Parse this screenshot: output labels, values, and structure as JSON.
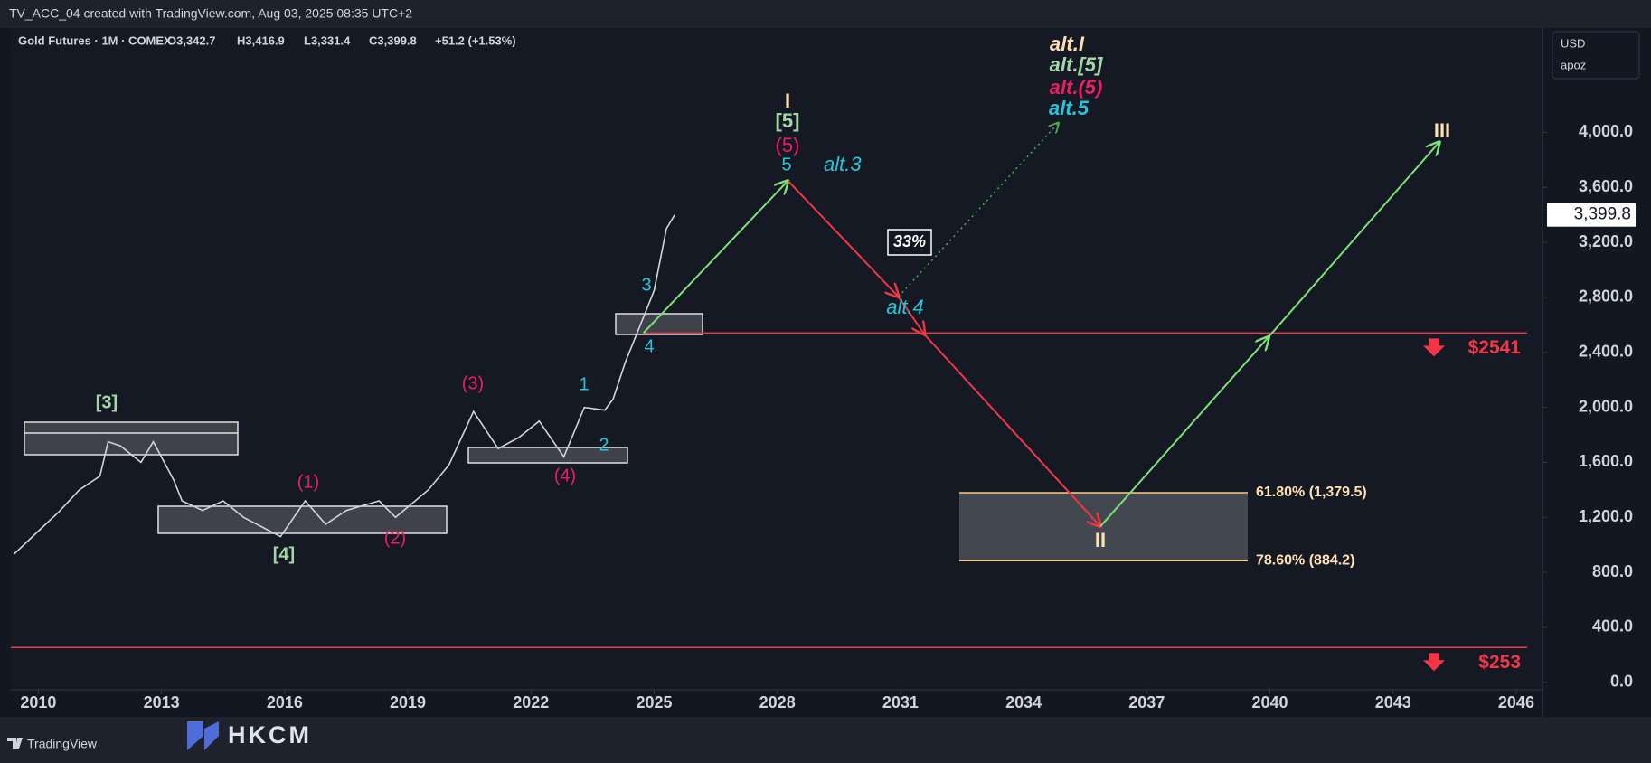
{
  "header": {
    "title": "TV_ACC_04 created with TradingView.com, Aug 03, 2025 08:35 UTC+2"
  },
  "legend": {
    "symbol": "Gold Futures · 1M · COMEX",
    "open": "O3,342.7",
    "high": "H3,416.9",
    "low": "L3,331.4",
    "close": "C3,399.8",
    "change": "+51.2 (+1.53%)"
  },
  "scale_box": {
    "currency": "USD",
    "unit": "apoz"
  },
  "footer": {
    "platform": "TradingView",
    "brand": "HKCM"
  },
  "chart_data": {
    "type": "line",
    "x": [
      2009.4,
      2010.0,
      2010.5,
      2011.0,
      2011.5,
      2011.7,
      2012.0,
      2012.5,
      2012.8,
      2013.3,
      2013.5,
      2014.0,
      2014.5,
      2015.0,
      2015.9,
      2016.5,
      2017.0,
      2017.5,
      2018.3,
      2018.7,
      2019.5,
      2020.0,
      2020.6,
      2021.2,
      2021.7,
      2022.2,
      2022.8,
      2023.3,
      2023.8,
      2024.0,
      2024.3,
      2024.8,
      2025.0,
      2025.3,
      2025.5
    ],
    "series": [
      {
        "color": "#d1d4dc",
        "values": [
          930,
          1100,
          1240,
          1400,
          1500,
          1750,
          1720,
          1600,
          1750,
          1470,
          1320,
          1250,
          1320,
          1200,
          1060,
          1320,
          1150,
          1250,
          1320,
          1200,
          1400,
          1580,
          1970,
          1700,
          1780,
          1900,
          1640,
          2000,
          1980,
          2060,
          2330,
          2700,
          2850,
          3300,
          3399.8
        ]
      }
    ],
    "xlim": [
      2009.33,
      2046.64
    ],
    "ylim": [
      -54,
      4759
    ],
    "xticks": [
      2010,
      2013,
      2016,
      2019,
      2022,
      2025,
      2028,
      2031,
      2034,
      2037,
      2040,
      2043,
      2046
    ],
    "yticks": [
      {
        "value": 0,
        "label": "0.0"
      },
      {
        "value": 400,
        "label": "400.0"
      },
      {
        "value": 800,
        "label": "800.0"
      },
      {
        "value": 1200,
        "label": "1,200.0"
      },
      {
        "value": 1600,
        "label": "1,600.0"
      },
      {
        "value": 2000,
        "label": "2,000.0"
      },
      {
        "value": 2400,
        "label": "2,400.0"
      },
      {
        "value": 2800,
        "label": "2,800.0"
      },
      {
        "value": 3200,
        "label": "3,200.0"
      },
      {
        "value": 3600,
        "label": "3,600.0"
      },
      {
        "value": 4000,
        "label": "4,000.0"
      }
    ],
    "grid": false,
    "last_price": {
      "value": 3399.8,
      "label": "3,399.8"
    },
    "levels": [
      {
        "value": 2541,
        "label": "$2541",
        "color": "#f23645"
      },
      {
        "value": 253,
        "label": "$253",
        "color": "#f23645"
      }
    ],
    "fib_levels": [
      {
        "value": 1379.5,
        "label": "61.80% (1,379.5)"
      },
      {
        "value": 884.2,
        "label": "78.60% (884.2)"
      }
    ],
    "projections": [
      {
        "color": "#7ee07a",
        "dashed": false,
        "x": [
          2024.74,
          2028.26
        ],
        "values": [
          2541,
          3648
        ]
      },
      {
        "color": "#f23645",
        "dashed": false,
        "x": [
          2028.26,
          2030.95
        ],
        "values": [
          3648,
          2805
        ]
      },
      {
        "color": "#4caf50",
        "dashed": true,
        "x": [
          2030.95,
          2034.85
        ],
        "values": [
          2805,
          4069
        ]
      },
      {
        "color": "#f23645",
        "dashed": false,
        "x": [
          2030.95,
          2031.59
        ],
        "values": [
          2805,
          2529
        ]
      },
      {
        "color": "#f23645",
        "dashed": false,
        "x": [
          2031.59,
          2035.87
        ],
        "values": [
          2529,
          1134
        ]
      },
      {
        "color": "#7ee07a",
        "dashed": false,
        "x": [
          2035.87,
          2039.97
        ],
        "values": [
          1134,
          2513
        ]
      },
      {
        "color": "#7ee07a",
        "dashed": false,
        "x": [
          2039.97,
          2044.13
        ],
        "values": [
          2513,
          3931
        ]
      }
    ],
    "wave_labels": [
      {
        "text": "[3]",
        "color": "#a5d6a7"
      },
      {
        "text": "[4]",
        "color": "#a5d6a7"
      },
      {
        "text": "(1)",
        "color": "#e91e63"
      },
      {
        "text": "(2)",
        "color": "#e91e63"
      },
      {
        "text": "(3)",
        "color": "#e91e63"
      },
      {
        "text": "(4)",
        "color": "#e91e63"
      },
      {
        "text": "1",
        "color": "#26c6da"
      },
      {
        "text": "2",
        "color": "#26c6da"
      },
      {
        "text": "3",
        "color": "#26c6da"
      },
      {
        "text": "4",
        "color": "#26c6da"
      },
      {
        "text": "I",
        "color": "#ffe0b2"
      },
      {
        "text": "[5]",
        "color": "#a5d6a7"
      },
      {
        "text": "(5)",
        "color": "#e91e63"
      },
      {
        "text": "5",
        "color": "#26c6da"
      },
      {
        "text": "alt.3",
        "color": "#26c6da"
      },
      {
        "text": "alt.I",
        "color": "#ffe0b2"
      },
      {
        "text": "alt.[5]",
        "color": "#a5d6a7"
      },
      {
        "text": "alt.(5)",
        "color": "#e91e63"
      },
      {
        "text": "alt.5",
        "color": "#26c6da"
      },
      {
        "text": "33%",
        "color": "#ffffff"
      },
      {
        "text": "alt.4",
        "color": "#26c6da"
      },
      {
        "text": "II",
        "color": "#ffe0b2"
      },
      {
        "text": "III",
        "color": "#ffe0b2"
      }
    ]
  }
}
